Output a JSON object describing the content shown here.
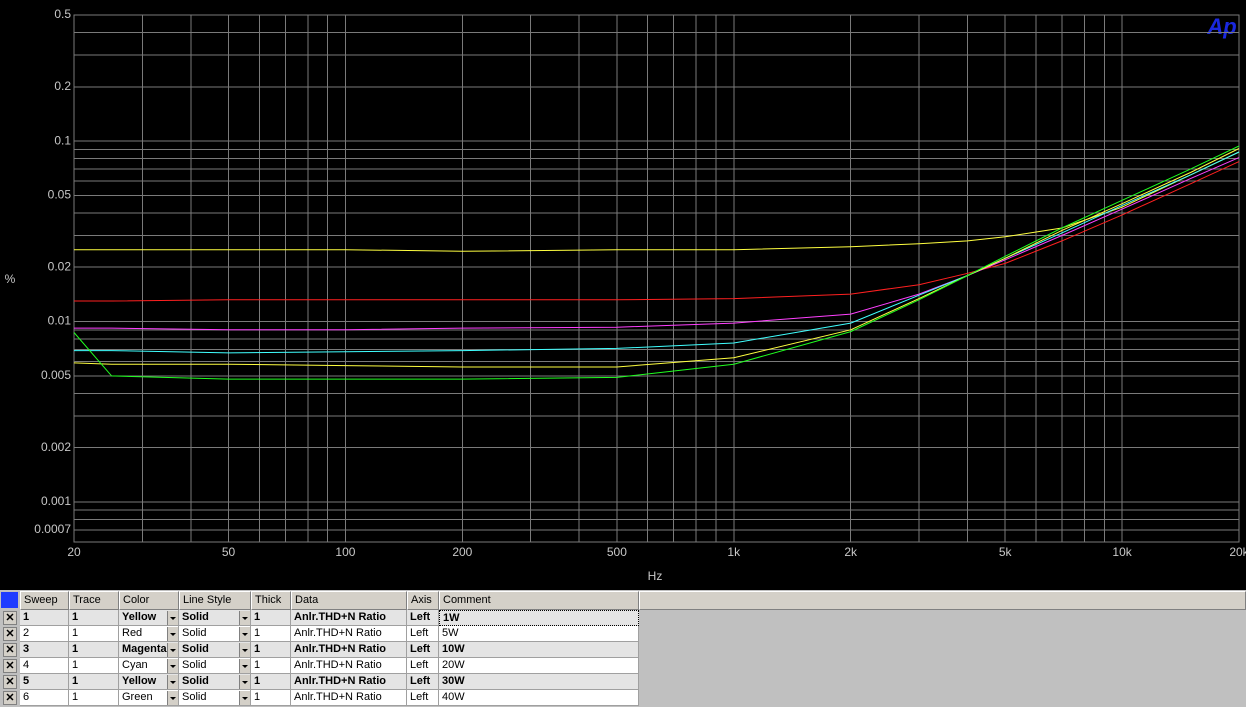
{
  "chart_data": {
    "type": "line",
    "x_label": "Hz",
    "y_label": "%",
    "x": [
      20,
      25,
      50,
      100,
      200,
      500,
      1000,
      2000,
      3000,
      4000,
      5000,
      7000,
      10000,
      15000,
      20000
    ],
    "series": [
      {
        "name": "1W",
        "color": "#ffff40",
        "values": [
          0.025,
          0.025,
          0.025,
          0.025,
          0.0245,
          0.025,
          0.025,
          0.026,
          0.027,
          0.028,
          0.0295,
          0.033,
          0.043,
          0.065,
          0.087
        ]
      },
      {
        "name": "5W",
        "color": "#ff2020",
        "values": [
          0.013,
          0.013,
          0.0132,
          0.0132,
          0.0132,
          0.0132,
          0.0134,
          0.0142,
          0.016,
          0.0185,
          0.021,
          0.028,
          0.039,
          0.058,
          0.077
        ]
      },
      {
        "name": "10W",
        "color": "#ff40ff",
        "values": [
          0.0092,
          0.0092,
          0.009,
          0.009,
          0.0092,
          0.0093,
          0.0098,
          0.011,
          0.0142,
          0.018,
          0.022,
          0.03,
          0.042,
          0.062,
          0.081
        ]
      },
      {
        "name": "20W",
        "color": "#40ffff",
        "values": [
          0.0069,
          0.0069,
          0.0067,
          0.0068,
          0.0069,
          0.0071,
          0.0076,
          0.0098,
          0.014,
          0.018,
          0.0224,
          0.031,
          0.044,
          0.065,
          0.087
        ]
      },
      {
        "name": "30W",
        "color": "#ffff40",
        "values": [
          0.0059,
          0.0058,
          0.0058,
          0.0057,
          0.0056,
          0.0056,
          0.0063,
          0.009,
          0.0134,
          0.018,
          0.0224,
          0.032,
          0.045,
          0.067,
          0.091
        ]
      },
      {
        "name": "40W",
        "color": "#20ff20",
        "values": [
          0.0087,
          0.005,
          0.0048,
          0.0048,
          0.0048,
          0.0049,
          0.0058,
          0.0088,
          0.0132,
          0.018,
          0.023,
          0.033,
          0.047,
          0.07,
          0.094
        ]
      }
    ],
    "xlim": [
      20,
      20000
    ],
    "ylim": [
      0.0006,
      0.5
    ],
    "x_log": true,
    "y_log": true,
    "grid": true,
    "minor_grid": true,
    "xticks": [
      20,
      50,
      100,
      200,
      500,
      {
        "value": 1000,
        "label": "1k"
      },
      {
        "value": 2000,
        "label": "2k"
      },
      {
        "value": 5000,
        "label": "5k"
      },
      {
        "value": 10000,
        "label": "10k"
      },
      {
        "value": 20000,
        "label": "20k"
      }
    ],
    "yticks": [
      0.5,
      0.2,
      0.1,
      0.05,
      0.02,
      0.01,
      0.005,
      0.002,
      0.001,
      0.0007
    ]
  },
  "logo": "Ap",
  "table": {
    "columns": [
      "Sweep",
      "Trace",
      "Color",
      "Line Style",
      "Thick",
      "Data",
      "Axis",
      "Comment"
    ],
    "rows": [
      {
        "sweep": "1",
        "trace": "1",
        "color": "Yellow",
        "line_style": "Solid",
        "thick": "1",
        "data": "Anlr.THD+N Ratio",
        "axis": "Left"
      },
      {
        "sweep": "2",
        "trace": "1",
        "color": "Red",
        "line_style": "Solid",
        "thick": "1",
        "data": "Anlr.THD+N Ratio",
        "axis": "Left"
      },
      {
        "sweep": "3",
        "trace": "1",
        "color": "Magenta",
        "line_style": "Solid",
        "thick": "1",
        "data": "Anlr.THD+N Ratio",
        "axis": "Left"
      },
      {
        "sweep": "4",
        "trace": "1",
        "color": "Cyan",
        "line_style": "Solid",
        "thick": "1",
        "data": "Anlr.THD+N Ratio",
        "axis": "Left"
      },
      {
        "sweep": "5",
        "trace": "1",
        "color": "Yellow",
        "line_style": "Solid",
        "thick": "1",
        "data": "Anlr.THD+N Ratio",
        "axis": "Left"
      },
      {
        "sweep": "6",
        "trace": "1",
        "color": "Green",
        "line_style": "Solid",
        "thick": "1",
        "data": "Anlr.THD+N Ratio",
        "axis": "Left"
      }
    ]
  }
}
